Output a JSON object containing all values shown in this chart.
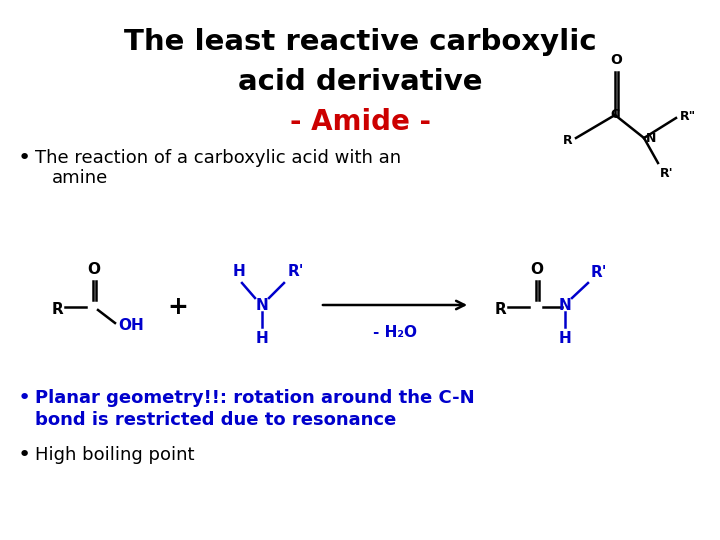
{
  "title_line1": "The least reactive carboxylic",
  "title_line2": "acid derivative",
  "subtitle": "- Amide -",
  "title_color": "#000000",
  "subtitle_color": "#cc0000",
  "bullet1_text1": "The reaction of a carboxylic acid with an",
  "bullet1_text2": "amine",
  "bullet2_text1": "Planar geometry!!: rotation around the C-N",
  "bullet2_text2": "bond is restricted due to resonance",
  "bullet3_text": "High boiling point",
  "bullet_color_blue": "#0000cc",
  "bullet_color_black": "#000000",
  "bg_color": "#ffffff",
  "h2o_text": "- H₂O",
  "oh_color": "#0000cc",
  "n_color": "#0000cc"
}
